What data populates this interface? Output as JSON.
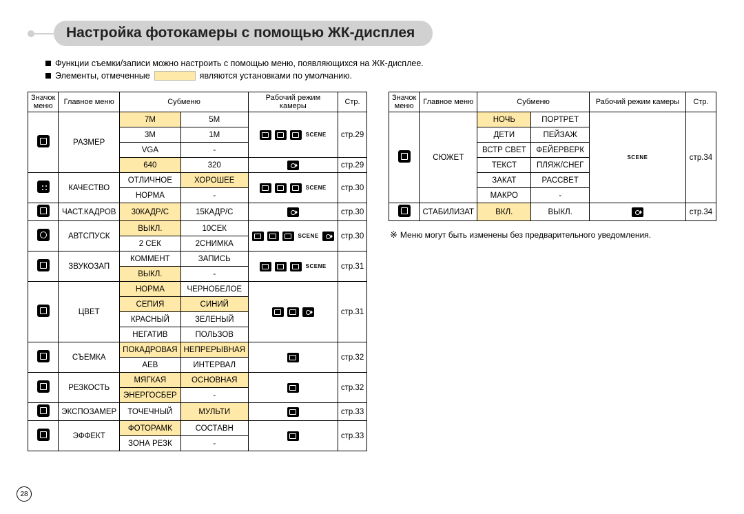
{
  "title": "Настройка фотокамеры с помощью ЖК-дисплея",
  "intro1": "Функции съемки/записи можно настроить с помощью меню, появляющихся на ЖК-дисплее.",
  "intro2a": "Элементы, отмеченные",
  "intro2b": "являются установками по умолчанию.",
  "page_num": "28",
  "note": "Меню могут быть изменены без предварительного уведомления.",
  "note_sym": "※",
  "headers": {
    "icon": "Значок меню",
    "main": "Главное меню",
    "sub": "Субменю",
    "mode": "Рабочий режим камеры",
    "page": "Стр."
  },
  "scene_label": "SCENE",
  "left_menus": {
    "size": "РАЗМЕР",
    "quality": "КАЧЕСТВО",
    "fps": "ЧАСТ.КАДРОВ",
    "timer": "АВТСПУСК",
    "voice": "ЗВУКОЗАП",
    "color": "ЦВЕТ",
    "drive": "СЪЕМКА",
    "sharp": "РЕЗКОСТЬ",
    "meter": "ЭКСПОЗАМЕР",
    "effect": "ЭФФЕКТ"
  },
  "left_rows": {
    "r1a": "7M",
    "r1b": "5M",
    "r2a": "3M",
    "r2b": "1M",
    "r3a": "VGA",
    "r3b": "-",
    "r4a": "640",
    "r4b": "320",
    "r5a": "ОТЛИЧНОЕ",
    "r5b": "ХОРОШЕЕ",
    "r6a": "НОРМА",
    "r6b": "-",
    "r7a": "30КАДР/С",
    "r7b": "15КАДР/С",
    "r8a": "ВЫКЛ.",
    "r8b": "10СЕК",
    "r9a": "2 СЕК",
    "r9b": "2СНИМКА",
    "r10a": "КОММЕНТ",
    "r10b": "ЗАПИСЬ",
    "r11a": "ВЫКЛ.",
    "r11b": "-",
    "r12a": "НОРМА",
    "r12b": "ЧЕРНОБЕЛОЕ",
    "r13a": "СЕПИЯ",
    "r13b": "СИНИЙ",
    "r14a": "КРАСНЫЙ",
    "r14b": "ЗЕЛЕНЫЙ",
    "r15a": "НЕГАТИВ",
    "r15b": "ПОЛЬЗОВ",
    "r16a": "ПОКАДРОВАЯ",
    "r16b": "НЕПРЕРЫВНАЯ",
    "r17a": "AEB",
    "r17b": "ИНТЕРВАЛ",
    "r18a": "МЯГКАЯ",
    "r18b": "ОСНОВНАЯ",
    "r19a": "ЭНЕРГОСБЕР",
    "r19b": "-",
    "r20a": "ТОЧЕЧНЫЙ",
    "r20b": "МУЛЬТИ",
    "r21a": "ФОТОРАМК",
    "r21b": "СОСТАВН",
    "r22a": "ЗОНА РЕЗК",
    "r22b": "-"
  },
  "left_pages": {
    "p1": "стр.29",
    "p2": "стр.29",
    "p3": "стр.30",
    "p4": "стр.30",
    "p5": "стр.30",
    "p6": "стр.31",
    "p7": "стр.31",
    "p8": "стр.32",
    "p9": "стр.32",
    "p10": "стр.33",
    "p11": "стр.33"
  },
  "right_menus": {
    "scene": "СЮЖЕТ",
    "stab": "СТАБИЛИЗАТ"
  },
  "right_rows": {
    "s1a": "НОЧЬ",
    "s1b": "ПОРТРЕТ",
    "s2a": "ДЕТИ",
    "s2b": "ПЕЙЗАЖ",
    "s3a": "ВСТР СВЕТ",
    "s3b": "ФЕЙЕРВЕРК",
    "s4a": "ТЕКСТ",
    "s4b": "ПЛЯЖ/СНЕГ",
    "s5a": "ЗАКАТ",
    "s5b": "РАССВЕТ",
    "s6a": "МАКРО",
    "s6b": "-",
    "st1a": "ВКЛ.",
    "st1b": "ВЫКЛ."
  },
  "right_pages": {
    "p1": "стр.34",
    "p2": "стр.34"
  }
}
